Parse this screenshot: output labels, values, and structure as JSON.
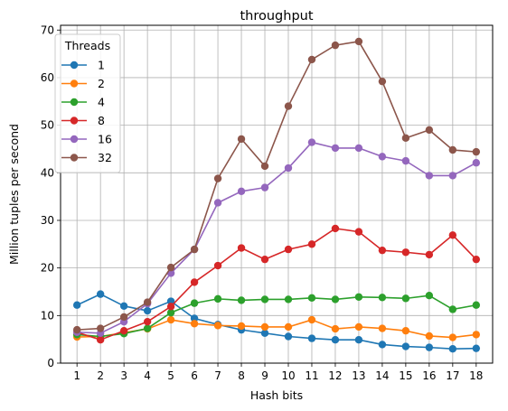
{
  "chart_data": {
    "type": "line",
    "title": "throughput",
    "xlabel": "Hash bits",
    "ylabel": "Million tuples per second",
    "x": [
      1,
      2,
      3,
      4,
      5,
      6,
      7,
      8,
      9,
      10,
      11,
      12,
      13,
      14,
      15,
      16,
      17,
      18
    ],
    "xlim": [
      0.3,
      18.7
    ],
    "ylim": [
      0,
      71
    ],
    "yticks": [
      0,
      10,
      20,
      30,
      40,
      50,
      60,
      70
    ],
    "grid": true,
    "legend": {
      "title": "Threads",
      "placement": "top-left"
    },
    "series": [
      {
        "name": "1",
        "color": "#1f77b4",
        "values": [
          12.2,
          14.5,
          12.0,
          11.0,
          13.0,
          9.4,
          8.1,
          7.0,
          6.3,
          5.6,
          5.2,
          4.9,
          4.9,
          3.9,
          3.5,
          3.3,
          3.0,
          3.1
        ]
      },
      {
        "name": "2",
        "color": "#ff7f0e",
        "values": [
          5.5,
          5.6,
          6.4,
          7.2,
          9.1,
          8.3,
          7.9,
          7.8,
          7.6,
          7.6,
          9.1,
          7.2,
          7.6,
          7.3,
          6.8,
          5.7,
          5.4,
          6.0
        ]
      },
      {
        "name": "4",
        "color": "#2ca02c",
        "values": [
          6.0,
          5.6,
          6.2,
          7.3,
          10.6,
          12.6,
          13.5,
          13.2,
          13.4,
          13.4,
          13.7,
          13.4,
          13.9,
          13.8,
          13.6,
          14.2,
          11.3,
          12.2
        ]
      },
      {
        "name": "8",
        "color": "#d62728",
        "values": [
          6.5,
          4.9,
          6.8,
          8.7,
          11.9,
          17.0,
          20.5,
          24.2,
          21.8,
          23.9,
          25.0,
          28.3,
          27.6,
          23.7,
          23.3,
          22.8,
          26.9,
          21.8
        ]
      },
      {
        "name": "16",
        "color": "#9467bd",
        "values": [
          6.5,
          6.3,
          8.7,
          12.5,
          18.9,
          23.9,
          33.7,
          36.1,
          36.9,
          41.0,
          46.4,
          45.2,
          45.2,
          43.4,
          42.5,
          39.4,
          39.4,
          42.1
        ]
      },
      {
        "name": "32",
        "color": "#8c564b",
        "values": [
          7.0,
          7.3,
          9.7,
          12.8,
          20.1,
          23.9,
          38.8,
          47.1,
          41.4,
          54.0,
          63.8,
          66.8,
          67.6,
          59.2,
          47.3,
          49.0,
          44.8,
          44.4
        ]
      }
    ]
  }
}
